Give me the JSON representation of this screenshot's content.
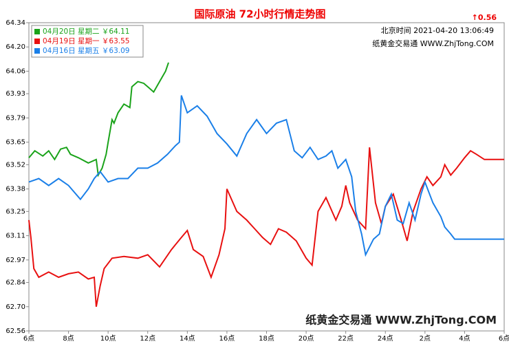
{
  "chart_data": {
    "type": "line",
    "title": "国际原油 72小时行情走势图",
    "change": "↑0.56",
    "info": [
      "北京时间 2021-04-20 13:06:49",
      "纸黄金交易通 WWW.ZhjTong.COM"
    ],
    "watermark": "纸黄金交易通 WWW.ZhjTong.COM",
    "legend": "top-left",
    "grid": false,
    "xlim": [
      0,
      24
    ],
    "xticks": [
      {
        "value": 0,
        "label": "6点"
      },
      {
        "value": 2,
        "label": "8点"
      },
      {
        "value": 4,
        "label": "10点"
      },
      {
        "value": 6,
        "label": "12点"
      },
      {
        "value": 8,
        "label": "14点"
      },
      {
        "value": 10,
        "label": "16点"
      },
      {
        "value": 12,
        "label": "18点"
      },
      {
        "value": 14,
        "label": "20点"
      },
      {
        "value": 16,
        "label": "22点"
      },
      {
        "value": 18,
        "label": "24点"
      },
      {
        "value": 20,
        "label": "2点"
      },
      {
        "value": 22,
        "label": "4点"
      },
      {
        "value": 24,
        "label": "6点"
      }
    ],
    "ylim": [
      62.56,
      64.34
    ],
    "yticks": [
      62.56,
      {
        "value": 62.7,
        "label": "62.70"
      },
      62.84,
      62.97,
      63.11,
      63.25,
      63.38,
      63.52,
      63.65,
      63.79,
      63.93,
      64.06,
      {
        "value": 64.2,
        "label": "64.20"
      },
      64.34
    ],
    "series": [
      {
        "name": "04月20日 星期二 ￥64.11",
        "color": "#1aa31a",
        "x": [
          0,
          0.3,
          0.7,
          1.0,
          1.3,
          1.6,
          1.9,
          2.1,
          2.5,
          3.0,
          3.4,
          3.5,
          3.7,
          3.9,
          4.0,
          4.2,
          4.3,
          4.5,
          4.8,
          5.1,
          5.2,
          5.5,
          5.8,
          6.0,
          6.3,
          6.6,
          6.9,
          7.05
        ],
        "values": [
          63.56,
          63.6,
          63.57,
          63.6,
          63.55,
          63.61,
          63.62,
          63.58,
          63.56,
          63.53,
          63.55,
          63.46,
          63.5,
          63.58,
          63.65,
          63.78,
          63.76,
          63.82,
          63.87,
          63.85,
          63.97,
          64.0,
          63.99,
          63.97,
          63.94,
          64.0,
          64.06,
          64.11
        ]
      },
      {
        "name": "04月19日 星期一 ￥63.55",
        "color": "#e81010",
        "x": [
          0,
          0.1,
          0.25,
          0.5,
          1.0,
          1.5,
          2.0,
          2.5,
          3.0,
          3.3,
          3.4,
          3.6,
          3.8,
          4.2,
          4.8,
          5.5,
          6.0,
          6.6,
          7.2,
          7.7,
          8.0,
          8.3,
          8.8,
          9.2,
          9.6,
          9.9,
          10.0,
          10.5,
          11.0,
          11.4,
          11.8,
          12.2,
          12.6,
          13.0,
          13.5,
          14.0,
          14.3,
          14.6,
          15.0,
          15.5,
          15.8,
          16.0,
          16.2,
          16.6,
          17.0,
          17.2,
          17.5,
          17.8,
          18.0,
          18.4,
          18.8,
          19.1,
          19.4,
          19.8,
          20.1,
          20.4,
          20.8,
          21.0,
          21.3,
          21.6,
          22.0,
          22.3,
          22.6,
          23.0,
          24.0
        ],
        "values": [
          63.2,
          63.1,
          62.92,
          62.87,
          62.9,
          62.87,
          62.89,
          62.9,
          62.86,
          62.87,
          62.7,
          62.82,
          62.92,
          62.98,
          62.99,
          62.98,
          63.0,
          62.93,
          63.03,
          63.1,
          63.14,
          63.03,
          62.99,
          62.87,
          63.0,
          63.15,
          63.38,
          63.25,
          63.2,
          63.15,
          63.1,
          63.06,
          63.15,
          63.13,
          63.08,
          62.98,
          62.94,
          63.25,
          63.33,
          63.2,
          63.28,
          63.4,
          63.3,
          63.2,
          63.15,
          63.62,
          63.3,
          63.18,
          63.28,
          63.35,
          63.2,
          63.08,
          63.25,
          63.38,
          63.45,
          63.4,
          63.45,
          63.52,
          63.46,
          63.5,
          63.56,
          63.6,
          63.58,
          63.55,
          63.55
        ]
      },
      {
        "name": "04月16日 星期五 ￥63.09",
        "color": "#1a7fe8",
        "x": [
          0,
          0.5,
          1.0,
          1.5,
          2.0,
          2.6,
          3.0,
          3.3,
          3.6,
          4.0,
          4.5,
          5.0,
          5.5,
          6.0,
          6.5,
          7.0,
          7.4,
          7.6,
          7.7,
          8.0,
          8.5,
          9.0,
          9.5,
          10.0,
          10.5,
          11.0,
          11.5,
          12.0,
          12.5,
          13.0,
          13.4,
          13.8,
          14.2,
          14.6,
          15.0,
          15.3,
          15.6,
          16.0,
          16.3,
          16.5,
          16.8,
          17.0,
          17.4,
          17.7,
          18.0,
          18.3,
          18.6,
          18.9,
          19.2,
          19.5,
          19.8,
          20.0,
          20.4,
          20.8,
          21.0,
          21.3,
          21.5,
          22.5,
          24.0
        ],
        "values": [
          63.42,
          63.44,
          63.4,
          63.44,
          63.4,
          63.32,
          63.38,
          63.44,
          63.48,
          63.42,
          63.44,
          63.44,
          63.5,
          63.5,
          63.53,
          63.58,
          63.63,
          63.65,
          63.92,
          63.82,
          63.86,
          63.8,
          63.7,
          63.64,
          63.57,
          63.7,
          63.78,
          63.7,
          63.76,
          63.78,
          63.6,
          63.56,
          63.62,
          63.55,
          63.57,
          63.6,
          63.5,
          63.55,
          63.45,
          63.25,
          63.12,
          63.0,
          63.09,
          63.12,
          63.28,
          63.35,
          63.2,
          63.18,
          63.3,
          63.2,
          63.35,
          63.42,
          63.3,
          63.22,
          63.16,
          63.12,
          63.09,
          63.09,
          63.09
        ]
      }
    ]
  }
}
